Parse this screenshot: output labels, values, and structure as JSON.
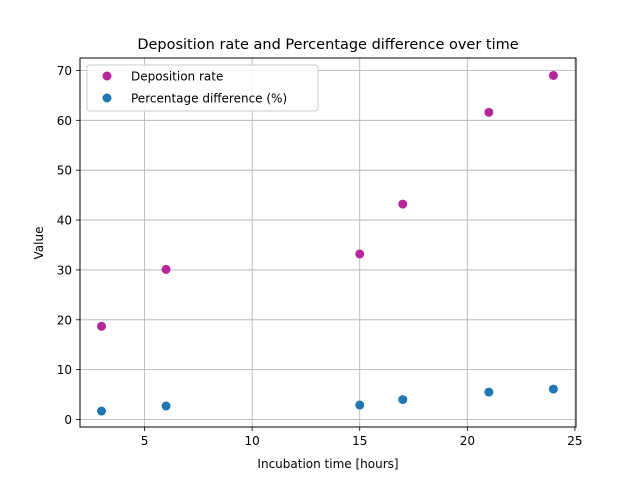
{
  "chart_data": {
    "type": "scatter",
    "title": "Deposition rate and Percentage difference over time",
    "xlabel": "Incubation time [hours]",
    "ylabel": "Value",
    "xlim": [
      2.0,
      25.05
    ],
    "ylim": [
      -1.5,
      72.5
    ],
    "xticks": [
      5,
      10,
      15,
      20,
      25
    ],
    "yticks": [
      0,
      10,
      20,
      30,
      40,
      50,
      60,
      70
    ],
    "grid": true,
    "legend_position": "top-left",
    "series": [
      {
        "name": "Deposition rate",
        "color": "#b5279a",
        "points": [
          {
            "x": 3,
            "y": 18.7
          },
          {
            "x": 6,
            "y": 30.1
          },
          {
            "x": 15,
            "y": 33.2
          },
          {
            "x": 17,
            "y": 43.2
          },
          {
            "x": 21,
            "y": 61.6
          },
          {
            "x": 24,
            "y": 69.0
          }
        ]
      },
      {
        "name": "Percentage difference (%)",
        "color": "#1f77b4",
        "points": [
          {
            "x": 3,
            "y": 1.7
          },
          {
            "x": 6,
            "y": 2.7
          },
          {
            "x": 15,
            "y": 2.9
          },
          {
            "x": 17,
            "y": 4.0
          },
          {
            "x": 21,
            "y": 5.5
          },
          {
            "x": 24,
            "y": 6.1
          }
        ]
      }
    ]
  }
}
